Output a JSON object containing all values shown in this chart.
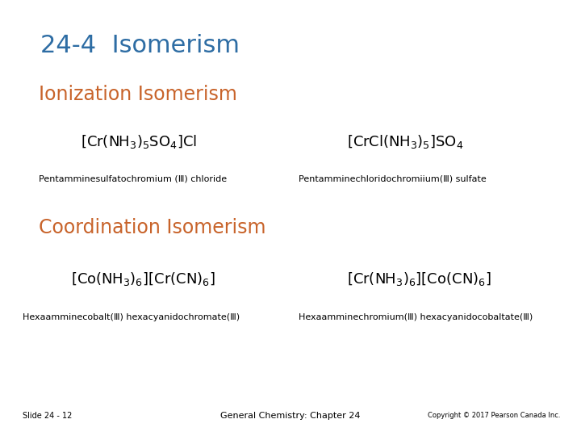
{
  "title": "24-4  Isomerism",
  "title_color": "#2E6DA4",
  "title_fontsize": 22,
  "section1_title": "Ionization Isomerism",
  "section1_color": "#C8632A",
  "section1_fontsize": 17,
  "section2_title": "Coordination Isomerism",
  "section2_color": "#C8632A",
  "section2_fontsize": 17,
  "formula_fontsize": 13,
  "formula_color": "#000000",
  "name_fontsize": 8,
  "name_color": "#000000",
  "footer_slide": "Slide 24 - 12",
  "footer_center": "General Chemistry: Chapter 24",
  "footer_right": "Copyright © 2017 Pearson Canada Inc.",
  "footer_fontsize": 7,
  "bg_color": "#FFFFFF",
  "ionization_left_formula": "[Cr(NH$_3$)$_5$SO$_4$]Cl",
  "ionization_right_formula": "[CrCl(NH$_3$)$_5$]SO$_4$",
  "ionization_left_name": "Pentamminesulfatochromium (Ⅲ) chloride",
  "ionization_right_name": "Pentamminechloridochromiium(Ⅲ) sulfate",
  "coord_left_formula": "[Co(NH$_3$)$_6$][Cr(CN)$_6$]",
  "coord_right_formula": "[Cr(NH$_3$)$_6$][Co(CN)$_6$]",
  "coord_left_name": "Hexaamminecobalt(Ⅲ) hexacyanidochromate(Ⅲ)",
  "coord_right_name": "Hexaamminechromium(Ⅲ) hexacyanidocobaltate(Ⅲ)"
}
